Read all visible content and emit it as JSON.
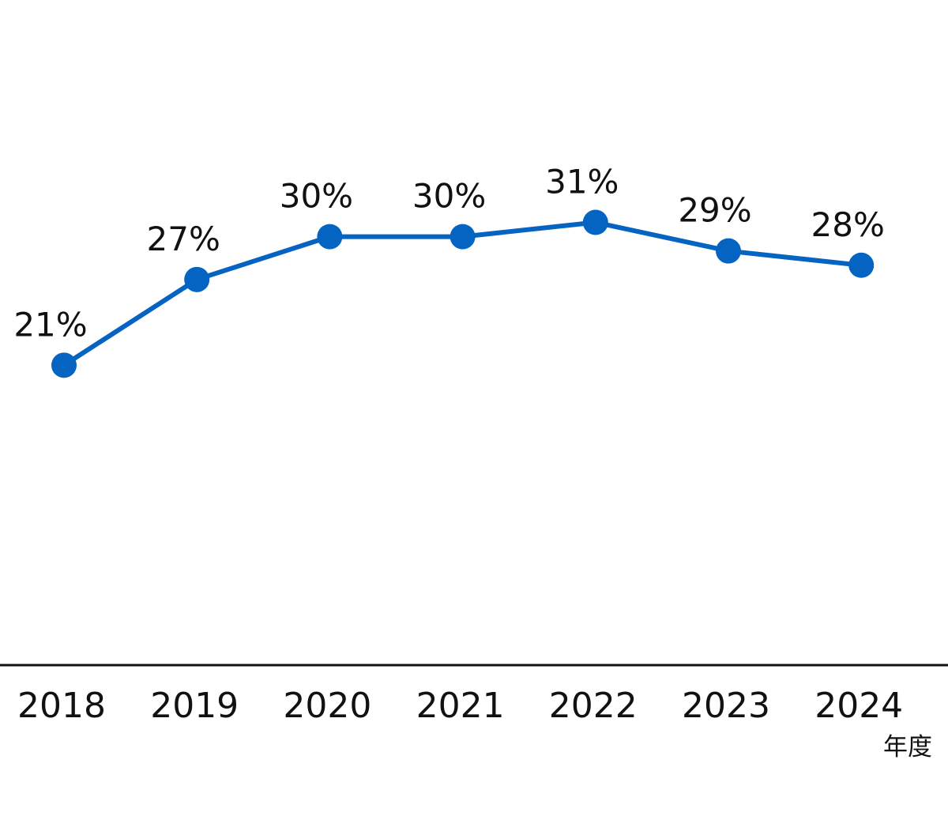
{
  "chart_data": {
    "type": "line",
    "categories": [
      "2018",
      "2019",
      "2020",
      "2021",
      "2022",
      "2023",
      "2024"
    ],
    "series": [
      {
        "values": [
          21,
          27,
          30,
          30,
          31,
          29,
          28
        ],
        "data_labels": [
          "21%",
          "27%",
          "30%",
          "30%",
          "31%",
          "29%",
          "28%"
        ],
        "color": "#0563C1"
      }
    ],
    "x_unit_label": "年度",
    "ylim": [
      0,
      50
    ],
    "grid": false,
    "legend": "none",
    "axis_color": "#111111"
  }
}
